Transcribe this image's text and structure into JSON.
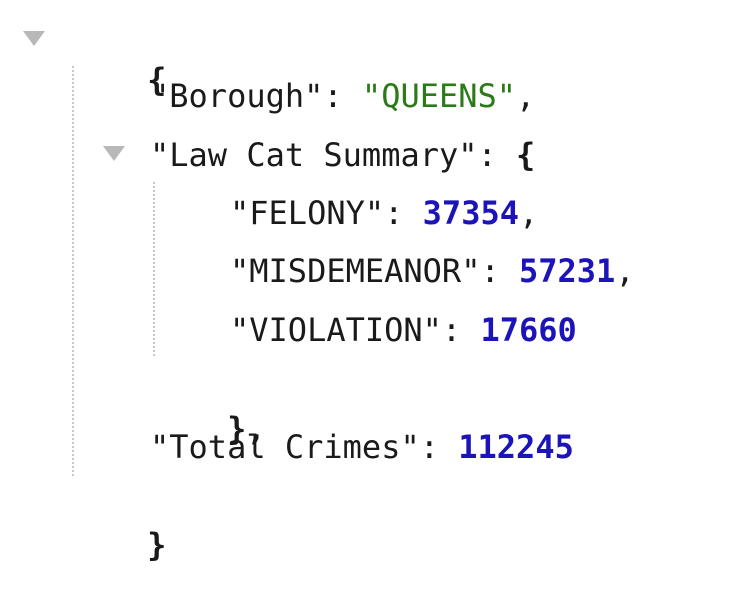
{
  "json_view": {
    "open_brace": "{",
    "close_brace": "}",
    "borough": {
      "key": "\"Borough\"",
      "value": "\"QUEENS\""
    },
    "law_cat_summary": {
      "key": "\"Law Cat Summary\"",
      "open_brace": "{",
      "close_brace": "},",
      "felony": {
        "key": "\"FELONY\"",
        "value": "37354"
      },
      "misdemeanor": {
        "key": "\"MISDEMEANOR\"",
        "value": "57231"
      },
      "violation": {
        "key": "\"VIOLATION\"",
        "value": "17660"
      }
    },
    "total_crimes": {
      "key": "\"Total Crimes\"",
      "value": "112245"
    }
  }
}
